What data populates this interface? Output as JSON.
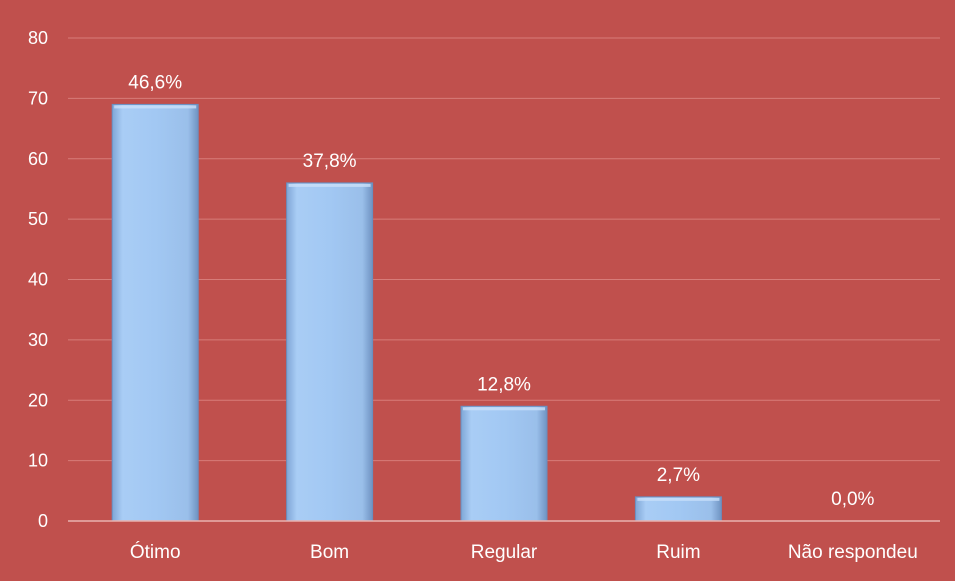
{
  "chart_data": {
    "type": "bar",
    "title": "",
    "xlabel": "",
    "ylabel": "",
    "ylim": [
      0,
      80
    ],
    "yticks": [
      0,
      10,
      20,
      30,
      40,
      50,
      60,
      70,
      80
    ],
    "grid": "horizontal",
    "categories": [
      "Ótimo",
      "Bom",
      "Regular",
      "Ruim",
      "Não respondeu"
    ],
    "values": [
      69,
      56,
      19,
      4,
      0
    ],
    "data_labels": [
      "46,6%",
      "37,8%",
      "12,8%",
      "2,7%",
      "0,0%"
    ],
    "colors": {
      "background": "#C0504D",
      "bar": "#9DC3F0",
      "bar_edge": "#6A8FC0",
      "gridline": "#D77C79",
      "axis": "#E9B2B0",
      "text": "#FFFFFF"
    }
  }
}
